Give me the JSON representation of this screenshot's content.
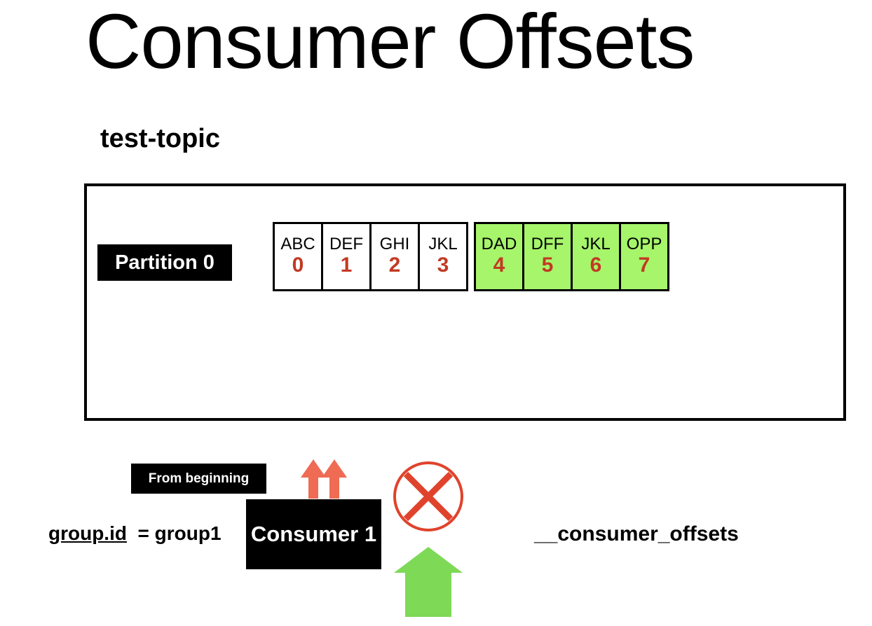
{
  "title": "Consumer Offsets",
  "topic_name": "test-topic",
  "partition_label": "Partition 0",
  "messages_consumed": [
    {
      "key": "ABC",
      "offset": "0"
    },
    {
      "key": "DEF",
      "offset": "1"
    },
    {
      "key": "GHI",
      "offset": "2"
    },
    {
      "key": "JKL",
      "offset": "3"
    }
  ],
  "messages_new": [
    {
      "key": "DAD",
      "offset": "4"
    },
    {
      "key": "DFF",
      "offset": "5"
    },
    {
      "key": "JKL",
      "offset": "6"
    },
    {
      "key": "OPP",
      "offset": "7"
    }
  ],
  "from_beginning_label": "From beginning",
  "consumer_label": "Consumer 1",
  "group": {
    "key": "group.id",
    "value": "= group1"
  },
  "offsets_topic": "__consumer_offsets",
  "colors": {
    "new_message_fill": "#a6f56a",
    "offset_text": "#c23a23",
    "up_arrows": "#ef6b54",
    "cross": "#e0432c",
    "commit_arrow": "#7ed957"
  },
  "icons": {
    "read_arrows": "double-up-arrow-icon",
    "blocked": "cross-circle-icon",
    "commit": "up-arrow-icon"
  }
}
